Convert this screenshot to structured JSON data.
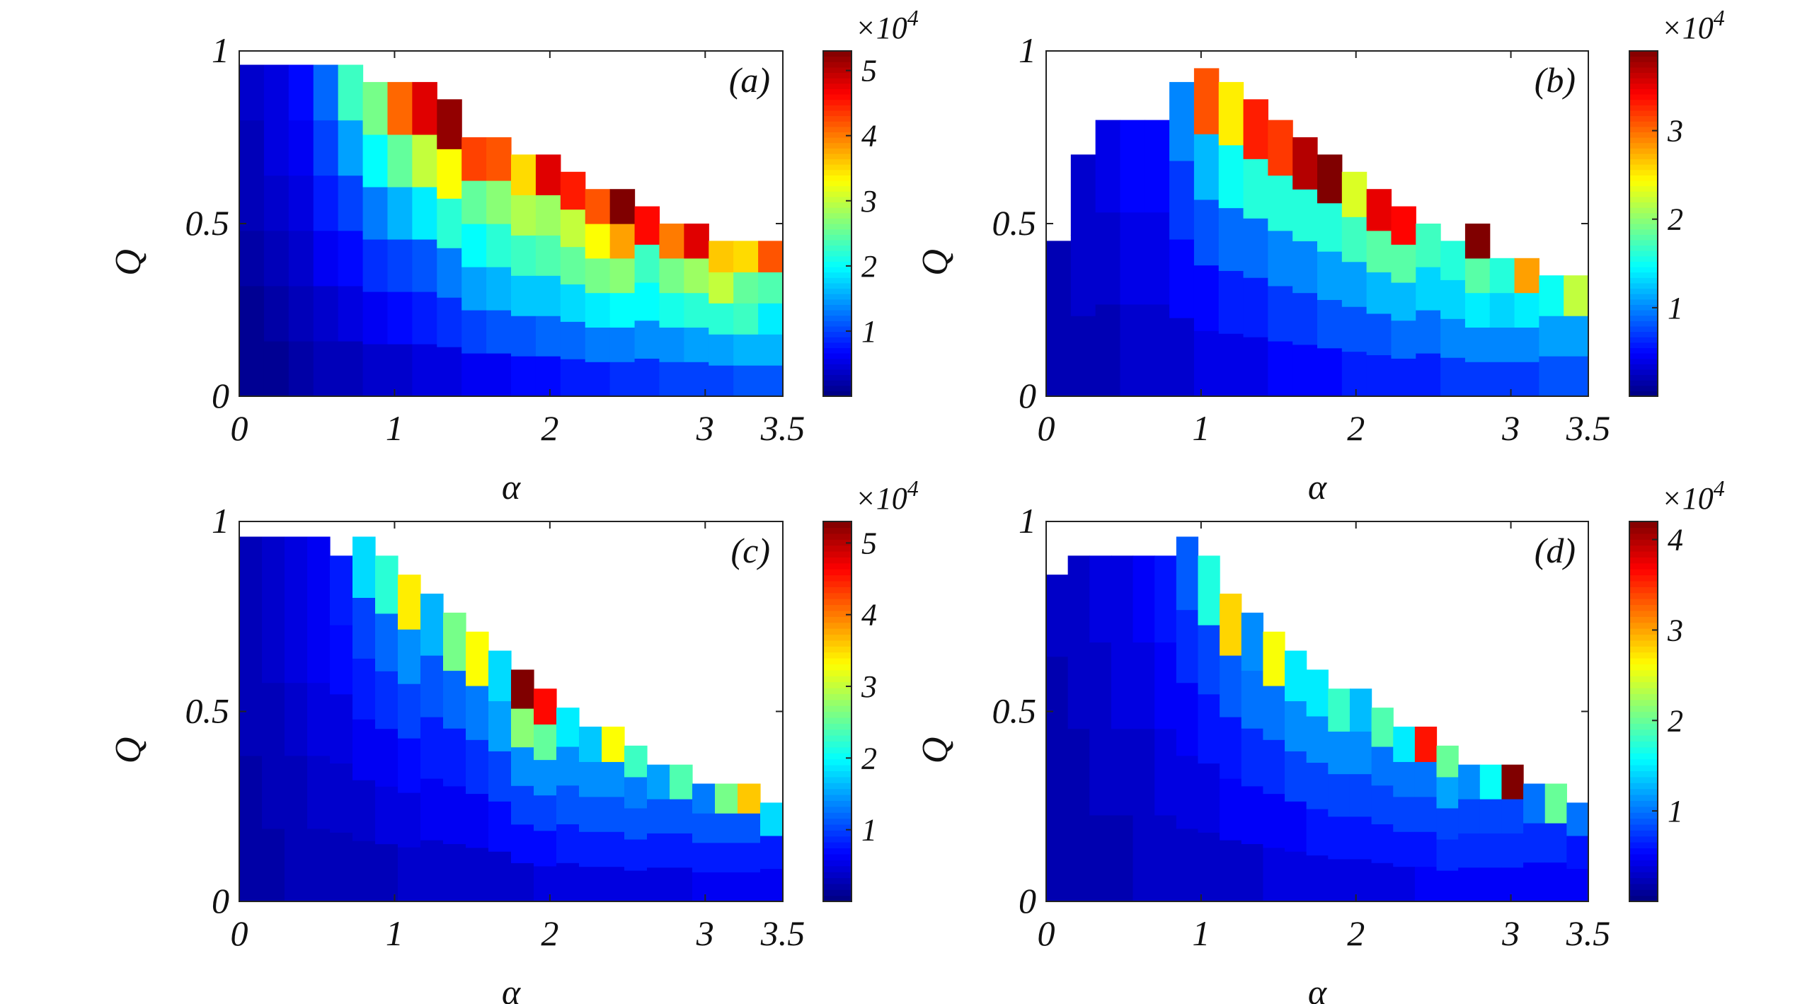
{
  "chart_data": [
    {
      "type": "heatmap",
      "panel_label": "(a)",
      "xlabel": "α",
      "ylabel": "Q",
      "xlim": [
        0,
        3.5
      ],
      "ylim": [
        0,
        1
      ],
      "xticks": [
        "0",
        "1",
        "2",
        "3",
        "3.5"
      ],
      "yticks": [
        "0",
        "0.5",
        "1"
      ],
      "colorbar": {
        "max": 5.3,
        "ticks": [
          "1",
          "2",
          "3",
          "4",
          "5"
        ],
        "multiplier": "×10",
        "exponent": "4"
      },
      "columns": [
        {
          "top": 0.96,
          "values": [
            0.1,
            0.1,
            0.2,
            0.3,
            0.3,
            0.4
          ]
        },
        {
          "top": 0.96,
          "values": [
            0.1,
            0.2,
            0.3,
            0.4,
            0.5,
            0.5
          ]
        },
        {
          "top": 0.96,
          "values": [
            0.2,
            0.3,
            0.4,
            0.5,
            0.6,
            0.7
          ]
        },
        {
          "top": 0.96,
          "values": [
            0.3,
            0.4,
            0.6,
            0.8,
            1.0,
            1.2
          ]
        },
        {
          "top": 0.96,
          "values": [
            0.3,
            0.5,
            0.7,
            1.0,
            1.5,
            2.3
          ]
        },
        {
          "top": 0.91,
          "values": [
            0.4,
            0.6,
            0.9,
            1.3,
            2.0,
            2.6
          ]
        },
        {
          "top": 0.91,
          "values": [
            0.4,
            0.7,
            1.0,
            1.6,
            2.5,
            4.1
          ]
        },
        {
          "top": 0.91,
          "values": [
            0.5,
            0.8,
            1.1,
            1.9,
            3.0,
            4.8
          ]
        },
        {
          "top": 0.86,
          "values": [
            0.5,
            0.9,
            1.3,
            2.2,
            3.3,
            5.2
          ]
        },
        {
          "top": 0.75,
          "values": [
            0.6,
            1.0,
            1.5,
            2.0,
            2.5,
            4.3
          ]
        },
        {
          "top": 0.75,
          "values": [
            0.6,
            1.1,
            1.6,
            2.2,
            2.7,
            4.2
          ]
        },
        {
          "top": 0.7,
          "values": [
            0.7,
            1.1,
            1.7,
            2.3,
            2.9,
            3.5
          ]
        },
        {
          "top": 0.7,
          "values": [
            0.7,
            1.2,
            1.7,
            2.4,
            2.8,
            4.8
          ]
        },
        {
          "top": 0.65,
          "values": [
            0.8,
            1.2,
            1.8,
            2.5,
            3.0,
            4.5
          ]
        },
        {
          "top": 0.6,
          "values": [
            0.8,
            1.3,
            1.9,
            2.6,
            3.3,
            4.2
          ]
        },
        {
          "top": 0.6,
          "values": [
            0.9,
            1.3,
            2.0,
            2.7,
            3.8,
            5.3
          ]
        },
        {
          "top": 0.55,
          "values": [
            0.9,
            1.4,
            2.0,
            2.3,
            4.6
          ]
        },
        {
          "top": 0.5,
          "values": [
            1.0,
            1.4,
            2.1,
            2.6,
            4.0
          ]
        },
        {
          "top": 0.5,
          "values": [
            1.0,
            1.5,
            2.2,
            2.8,
            4.8
          ]
        },
        {
          "top": 0.45,
          "values": [
            1.0,
            1.5,
            2.2,
            3.0,
            3.6
          ]
        },
        {
          "top": 0.45,
          "values": [
            1.1,
            1.6,
            2.3,
            2.5,
            3.5
          ]
        },
        {
          "top": 0.45,
          "values": [
            1.1,
            1.6,
            1.9,
            2.4,
            4.2
          ]
        }
      ]
    },
    {
      "type": "heatmap",
      "panel_label": "(b)",
      "xlabel": "α",
      "ylabel": "Q",
      "xlim": [
        0,
        3.5
      ],
      "ylim": [
        0,
        1
      ],
      "xticks": [
        "0",
        "1",
        "2",
        "3",
        "3.5"
      ],
      "yticks": [
        "0",
        "0.5",
        "1"
      ],
      "colorbar": {
        "max": 3.9,
        "ticks": [
          "1",
          "2",
          "3"
        ],
        "multiplier": "×10",
        "exponent": "4"
      },
      "columns": [
        {
          "top": 0.45,
          "values": [
            0.2,
            0.2
          ]
        },
        {
          "top": 0.7,
          "values": [
            0.2,
            0.3,
            0.3
          ]
        },
        {
          "top": 0.8,
          "values": [
            0.2,
            0.3,
            0.4
          ]
        },
        {
          "top": 0.8,
          "values": [
            0.3,
            0.4,
            0.5
          ]
        },
        {
          "top": 0.8,
          "values": [
            0.3,
            0.4,
            0.5
          ]
        },
        {
          "top": 0.91,
          "values": [
            0.3,
            0.5,
            0.7,
            1.0
          ]
        },
        {
          "top": 0.95,
          "values": [
            0.4,
            0.5,
            0.8,
            1.2,
            3.1
          ]
        },
        {
          "top": 0.91,
          "values": [
            0.4,
            0.6,
            0.9,
            1.5,
            2.5
          ]
        },
        {
          "top": 0.86,
          "values": [
            0.4,
            0.6,
            0.9,
            1.6,
            3.3
          ]
        },
        {
          "top": 0.8,
          "values": [
            0.5,
            0.7,
            1.0,
            1.6,
            3.2
          ]
        },
        {
          "top": 0.75,
          "values": [
            0.5,
            0.7,
            1.0,
            1.6,
            3.7
          ]
        },
        {
          "top": 0.7,
          "values": [
            0.5,
            0.8,
            1.1,
            1.6,
            3.9
          ]
        },
        {
          "top": 0.65,
          "values": [
            0.6,
            0.8,
            1.1,
            1.7,
            2.3
          ]
        },
        {
          "top": 0.6,
          "values": [
            0.6,
            0.8,
            1.2,
            1.8,
            3.5
          ]
        },
        {
          "top": 0.55,
          "values": [
            0.6,
            0.9,
            1.2,
            1.8,
            3.4
          ]
        },
        {
          "top": 0.5,
          "values": [
            0.6,
            0.9,
            1.3,
            1.7
          ]
        },
        {
          "top": 0.45,
          "values": [
            0.7,
            1.0,
            1.3,
            1.6
          ]
        },
        {
          "top": 0.5,
          "values": [
            0.7,
            1.0,
            1.4,
            1.8,
            3.9
          ]
        },
        {
          "top": 0.4,
          "values": [
            0.7,
            1.0,
            1.3,
            1.6
          ]
        },
        {
          "top": 0.4,
          "values": [
            0.7,
            1.0,
            1.4,
            2.8
          ]
        },
        {
          "top": 0.35,
          "values": [
            0.8,
            1.1,
            1.5
          ]
        },
        {
          "top": 0.35,
          "values": [
            0.8,
            1.1,
            2.2
          ]
        }
      ]
    },
    {
      "type": "heatmap",
      "panel_label": "(c)",
      "xlabel": "α",
      "ylabel": "Q",
      "xlim": [
        0,
        3.5
      ],
      "ylim": [
        0,
        1
      ],
      "xticks": [
        "0",
        "1",
        "2",
        "3",
        "3.5"
      ],
      "yticks": [
        "0",
        "0.5",
        "1"
      ],
      "colorbar": {
        "max": 5.3,
        "ticks": [
          "1",
          "2",
          "3",
          "4",
          "5"
        ],
        "multiplier": "×10",
        "exponent": "4"
      },
      "columns": [
        {
          "top": 0.96,
          "values": [
            0.2,
            0.2,
            0.3,
            0.3,
            0.3
          ]
        },
        {
          "top": 0.96,
          "values": [
            0.2,
            0.3,
            0.3,
            0.4,
            0.4
          ]
        },
        {
          "top": 0.96,
          "values": [
            0.3,
            0.3,
            0.4,
            0.5,
            0.5
          ]
        },
        {
          "top": 0.96,
          "values": [
            0.3,
            0.4,
            0.5,
            0.6,
            0.6
          ]
        },
        {
          "top": 0.91,
          "values": [
            0.3,
            0.4,
            0.5,
            0.7,
            0.8
          ]
        },
        {
          "top": 0.96,
          "values": [
            0.3,
            0.4,
            0.6,
            0.8,
            1.0,
            1.8
          ]
        },
        {
          "top": 0.91,
          "values": [
            0.3,
            0.5,
            0.6,
            0.9,
            1.2,
            2.2
          ]
        },
        {
          "top": 0.86,
          "values": [
            0.4,
            0.5,
            0.7,
            1.0,
            1.4,
            3.4
          ]
        },
        {
          "top": 0.81,
          "values": [
            0.4,
            0.6,
            0.8,
            1.1,
            1.6
          ]
        },
        {
          "top": 0.76,
          "values": [
            0.4,
            0.6,
            0.8,
            1.2,
            2.6
          ]
        },
        {
          "top": 0.71,
          "values": [
            0.4,
            0.6,
            0.9,
            1.3,
            3.3
          ]
        },
        {
          "top": 0.66,
          "values": [
            0.4,
            0.7,
            1.0,
            1.5,
            1.8
          ]
        },
        {
          "top": 0.61,
          "values": [
            0.4,
            0.7,
            1.0,
            1.4,
            2.7,
            5.3
          ]
        },
        {
          "top": 0.56,
          "values": [
            0.5,
            0.7,
            1.0,
            1.4,
            2.5,
            4.6
          ]
        },
        {
          "top": 0.51,
          "values": [
            0.5,
            0.8,
            1.1,
            1.4,
            1.9
          ]
        },
        {
          "top": 0.46,
          "values": [
            0.5,
            0.8,
            1.1,
            1.4,
            1.7
          ]
        },
        {
          "top": 0.46,
          "values": [
            0.5,
            0.8,
            1.1,
            1.4,
            3.3
          ]
        },
        {
          "top": 0.41,
          "values": [
            0.5,
            0.8,
            1.1,
            1.3,
            2.3
          ]
        },
        {
          "top": 0.36,
          "values": [
            0.5,
            0.8,
            1.1,
            1.5
          ]
        },
        {
          "top": 0.36,
          "values": [
            0.5,
            0.8,
            1.1,
            2.4
          ]
        },
        {
          "top": 0.31,
          "values": [
            0.6,
            0.8,
            1.1,
            1.3
          ]
        },
        {
          "top": 0.31,
          "values": [
            0.6,
            0.8,
            1.1,
            2.6
          ]
        },
        {
          "top": 0.31,
          "values": [
            0.6,
            0.8,
            1.1,
            3.6
          ]
        },
        {
          "top": 0.26,
          "values": [
            0.6,
            0.8,
            1.8
          ]
        }
      ]
    },
    {
      "type": "heatmap",
      "panel_label": "(d)",
      "xlabel": "α",
      "ylabel": "Q",
      "xlim": [
        0,
        3.5
      ],
      "ylim": [
        0,
        1
      ],
      "xticks": [
        "0",
        "1",
        "2",
        "3",
        "3.5"
      ],
      "yticks": [
        "0",
        "0.5",
        "1"
      ],
      "colorbar": {
        "max": 4.2,
        "ticks": [
          "1",
          "2",
          "3",
          "4"
        ],
        "multiplier": "×10",
        "exponent": "4"
      },
      "columns": [
        {
          "top": 0.86,
          "values": [
            0.2,
            0.2,
            0.2,
            0.3
          ]
        },
        {
          "top": 0.91,
          "values": [
            0.2,
            0.2,
            0.3,
            0.3
          ]
        },
        {
          "top": 0.91,
          "values": [
            0.2,
            0.3,
            0.3,
            0.4
          ]
        },
        {
          "top": 0.91,
          "values": [
            0.2,
            0.3,
            0.4,
            0.4
          ]
        },
        {
          "top": 0.91,
          "values": [
            0.3,
            0.3,
            0.4,
            0.5
          ]
        },
        {
          "top": 0.91,
          "values": [
            0.3,
            0.4,
            0.5,
            0.6
          ]
        },
        {
          "top": 0.96,
          "values": [
            0.3,
            0.4,
            0.5,
            0.7,
            0.9
          ]
        },
        {
          "top": 0.91,
          "values": [
            0.3,
            0.4,
            0.6,
            0.8,
            1.7
          ]
        },
        {
          "top": 0.81,
          "values": [
            0.3,
            0.5,
            0.6,
            0.9,
            2.8
          ]
        },
        {
          "top": 0.76,
          "values": [
            0.3,
            0.5,
            0.7,
            1.0,
            1.1
          ]
        },
        {
          "top": 0.71,
          "values": [
            0.4,
            0.5,
            0.7,
            1.0,
            2.6
          ]
        },
        {
          "top": 0.66,
          "values": [
            0.4,
            0.5,
            0.8,
            1.1,
            1.5
          ]
        },
        {
          "top": 0.61,
          "values": [
            0.4,
            0.6,
            0.8,
            1.1,
            1.5
          ]
        },
        {
          "top": 0.56,
          "values": [
            0.4,
            0.6,
            0.8,
            1.1,
            1.8
          ]
        },
        {
          "top": 0.56,
          "values": [
            0.4,
            0.6,
            0.8,
            1.1,
            1.3
          ]
        },
        {
          "top": 0.51,
          "values": [
            0.4,
            0.6,
            0.8,
            1.0,
            1.9
          ]
        },
        {
          "top": 0.46,
          "values": [
            0.4,
            0.6,
            0.8,
            1.0,
            1.5
          ]
        },
        {
          "top": 0.46,
          "values": [
            0.5,
            0.6,
            0.8,
            1.0,
            3.6
          ]
        },
        {
          "top": 0.41,
          "values": [
            0.5,
            0.7,
            0.8,
            1.2,
            2.0
          ]
        },
        {
          "top": 0.36,
          "values": [
            0.5,
            0.7,
            0.8,
            1.1
          ]
        },
        {
          "top": 0.36,
          "values": [
            0.5,
            0.7,
            0.8,
            1.6
          ]
        },
        {
          "top": 0.36,
          "values": [
            0.5,
            0.7,
            0.8,
            4.2
          ]
        },
        {
          "top": 0.31,
          "values": [
            0.5,
            0.7,
            1.0
          ]
        },
        {
          "top": 0.31,
          "values": [
            0.5,
            0.7,
            2.0
          ]
        },
        {
          "top": 0.26,
          "values": [
            0.5,
            0.6,
            1.0
          ]
        }
      ]
    }
  ]
}
